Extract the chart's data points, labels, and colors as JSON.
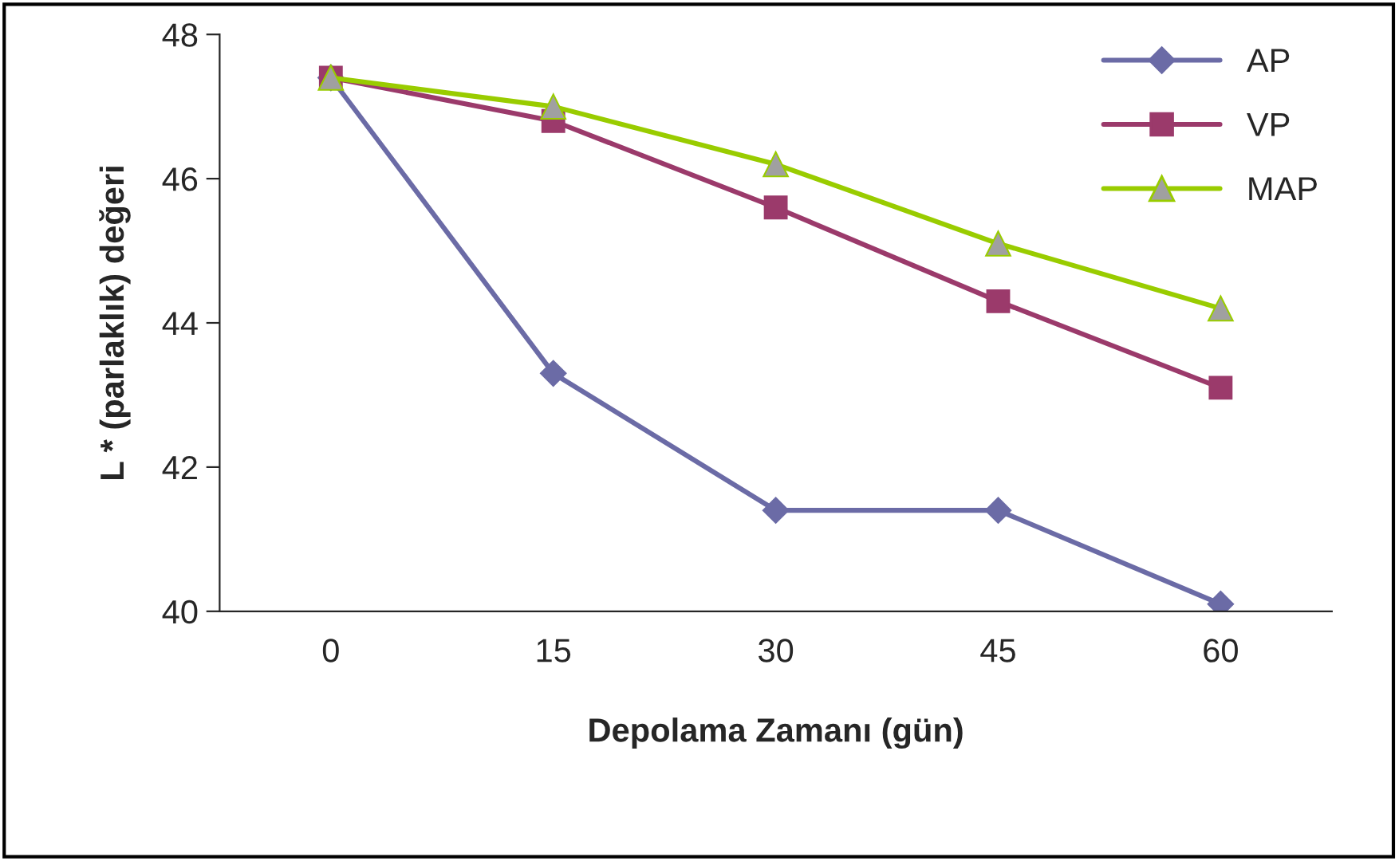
{
  "chart_data": {
    "type": "line",
    "xlabel": "Depolama Zamanı (gün)",
    "ylabel": "L * (parlaklık) değeri",
    "categories": [
      "0",
      "15",
      "30",
      "45",
      "60"
    ],
    "series": [
      {
        "name": "AP",
        "color": "#6b6ba6",
        "marker": "diamond",
        "values": [
          47.4,
          43.3,
          41.4,
          41.4,
          40.1
        ]
      },
      {
        "name": "VP",
        "color": "#9b3a6b",
        "marker": "square",
        "values": [
          47.4,
          46.8,
          45.6,
          44.3,
          43.1
        ]
      },
      {
        "name": "MAP",
        "color": "#99cc00",
        "marker": "triangle",
        "values": [
          47.4,
          47.0,
          46.2,
          45.1,
          44.2
        ]
      }
    ],
    "ylim": [
      40,
      48
    ],
    "yticks": [
      40,
      42,
      44,
      46,
      48
    ],
    "grid": false,
    "legend": "top right"
  }
}
